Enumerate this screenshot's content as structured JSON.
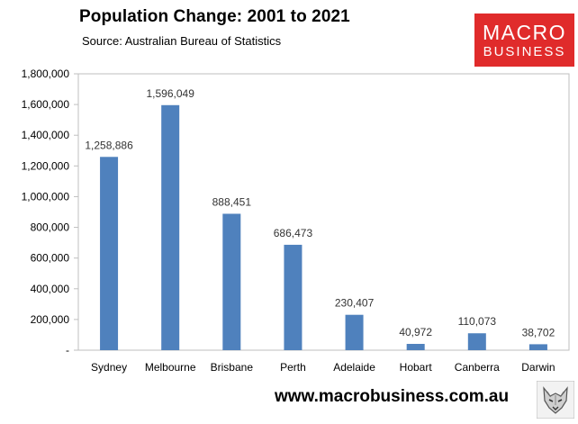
{
  "header": {
    "title": "Population Change: 2001 to 2021",
    "subtitle": "Source: Australian Bureau of Statistics"
  },
  "logo": {
    "line1": "MACRO",
    "line2": "BUSINESS",
    "color": "#e02b2b"
  },
  "footer": {
    "url": "www.macrobusiness.com.au",
    "badge_icon": "wolf-head-icon"
  },
  "chart_data": {
    "type": "bar",
    "categories": [
      "Sydney",
      "Melbourne",
      "Brisbane",
      "Perth",
      "Adelaide",
      "Hobart",
      "Canberra",
      "Darwin"
    ],
    "values": [
      1258886,
      1596049,
      888451,
      686473,
      230407,
      40972,
      110073,
      38702
    ],
    "data_labels": [
      "1,258,886",
      "1,596,049",
      "888,451",
      "686,473",
      "230,407",
      "40,972",
      "110,073",
      "38,702"
    ],
    "ylim": [
      0,
      1800000
    ],
    "yticks": [
      0,
      200000,
      400000,
      600000,
      800000,
      1000000,
      1200000,
      1400000,
      1600000,
      1800000
    ],
    "ytick_labels": [
      "-",
      "200,000",
      "400,000",
      "600,000",
      "800,000",
      "1,000,000",
      "1,200,000",
      "1,400,000",
      "1,600,000",
      "1,800,000"
    ],
    "bar_color": "#4f81bd",
    "grid": false,
    "legend": "none"
  }
}
